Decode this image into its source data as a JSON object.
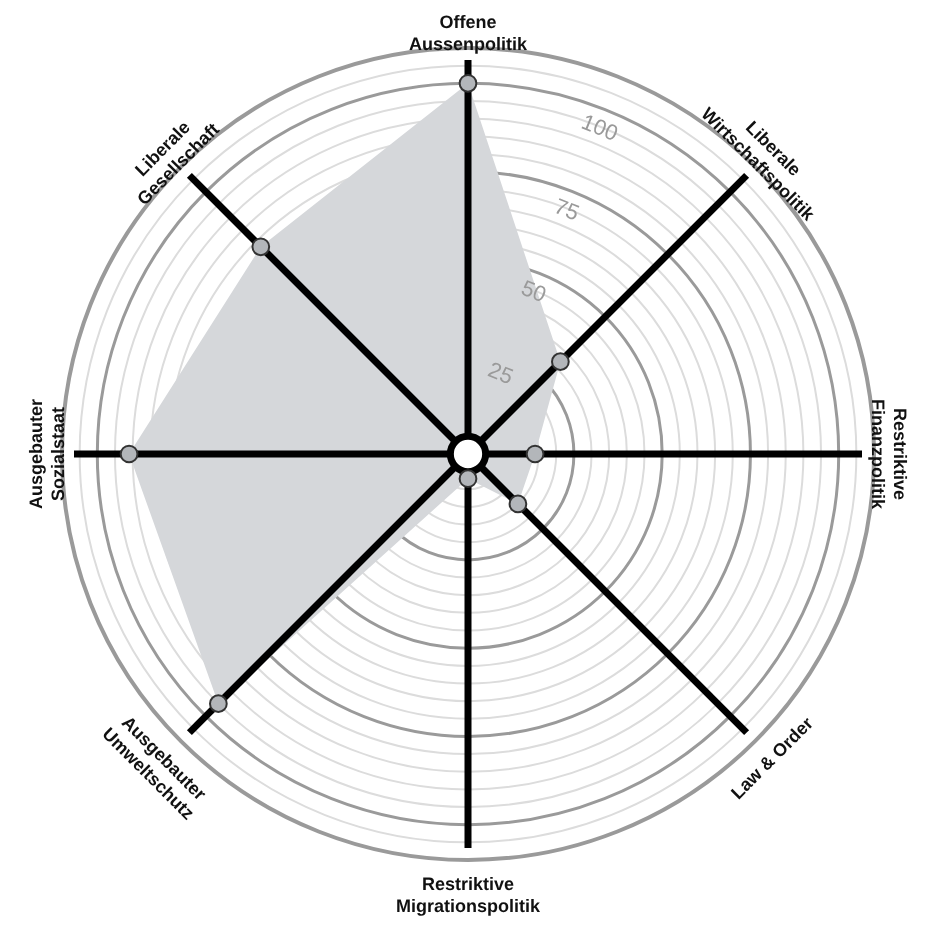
{
  "chart_data": {
    "type": "radar",
    "categories": [
      "Offene\nAussenpolitik",
      "Liberale\nWirtschaftspolitik",
      "Restriktive\nFinanzpolitik",
      "Law & Order",
      "Restriktive\nMigrationspolitik",
      "Ausgebauter\nUmweltschutz",
      "Ausgebauter\nSozialstaat",
      "Liberale\nGesellschaft"
    ],
    "series": [
      {
        "color": "#d5d7da",
        "values": [
          100,
          32,
          14,
          15,
          2,
          95,
          91,
          78
        ]
      }
    ],
    "ylim": [
      -5,
      110
    ],
    "yticks": [
      25,
      50,
      75,
      100
    ],
    "grid": true,
    "marker": "circle"
  }
}
